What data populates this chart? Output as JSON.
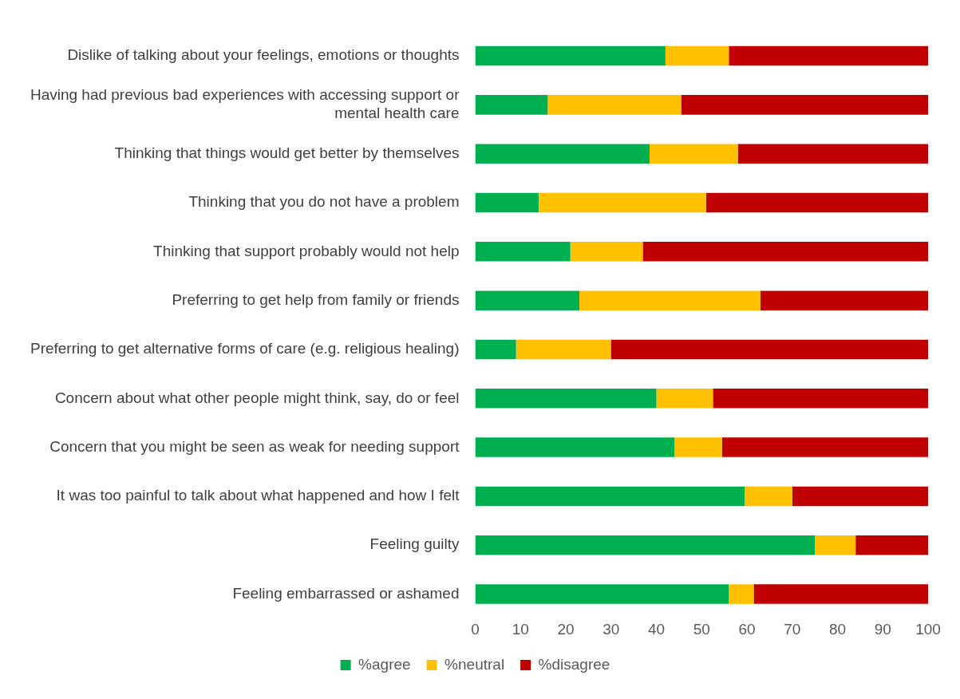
{
  "chart_data": {
    "type": "bar",
    "orientation": "horizontal",
    "stacked": true,
    "categories": [
      "Dislike of talking about your feelings, emotions or thoughts",
      "Having had previous bad experiences with accessing support or mental health care",
      "Thinking that things would get better by themselves",
      "Thinking that you do not have a problem",
      "Thinking that support probably would not help",
      "Preferring to get help from family or friends",
      "Preferring to get alternative forms of care (e.g. religious healing)",
      "Concern about what other people might think, say, do or feel",
      "Concern that you might be seen as weak for needing support",
      "It was too painful to talk about what happened and how I felt",
      "Feeling guilty",
      "Feeling embarrassed or ashamed"
    ],
    "series": [
      {
        "name": "%agree",
        "color": "#00b050",
        "values": [
          42,
          16,
          38.5,
          14,
          21,
          23,
          9,
          40,
          44,
          59.5,
          75,
          56
        ]
      },
      {
        "name": "%neutral",
        "color": "#ffc000",
        "values": [
          14,
          29.5,
          19.5,
          37,
          16,
          40,
          21,
          12.5,
          10.5,
          10.5,
          9,
          5.5
        ]
      },
      {
        "name": "%disagree",
        "color": "#c00000",
        "values": [
          44,
          54.5,
          42,
          49,
          63,
          37,
          70,
          47.5,
          45.5,
          30,
          16,
          38.5
        ]
      }
    ],
    "xlim": [
      0,
      100
    ],
    "xticks": [
      0,
      10,
      20,
      30,
      40,
      50,
      60,
      70,
      80,
      90,
      100
    ],
    "grid": false,
    "legend": "bottom"
  }
}
